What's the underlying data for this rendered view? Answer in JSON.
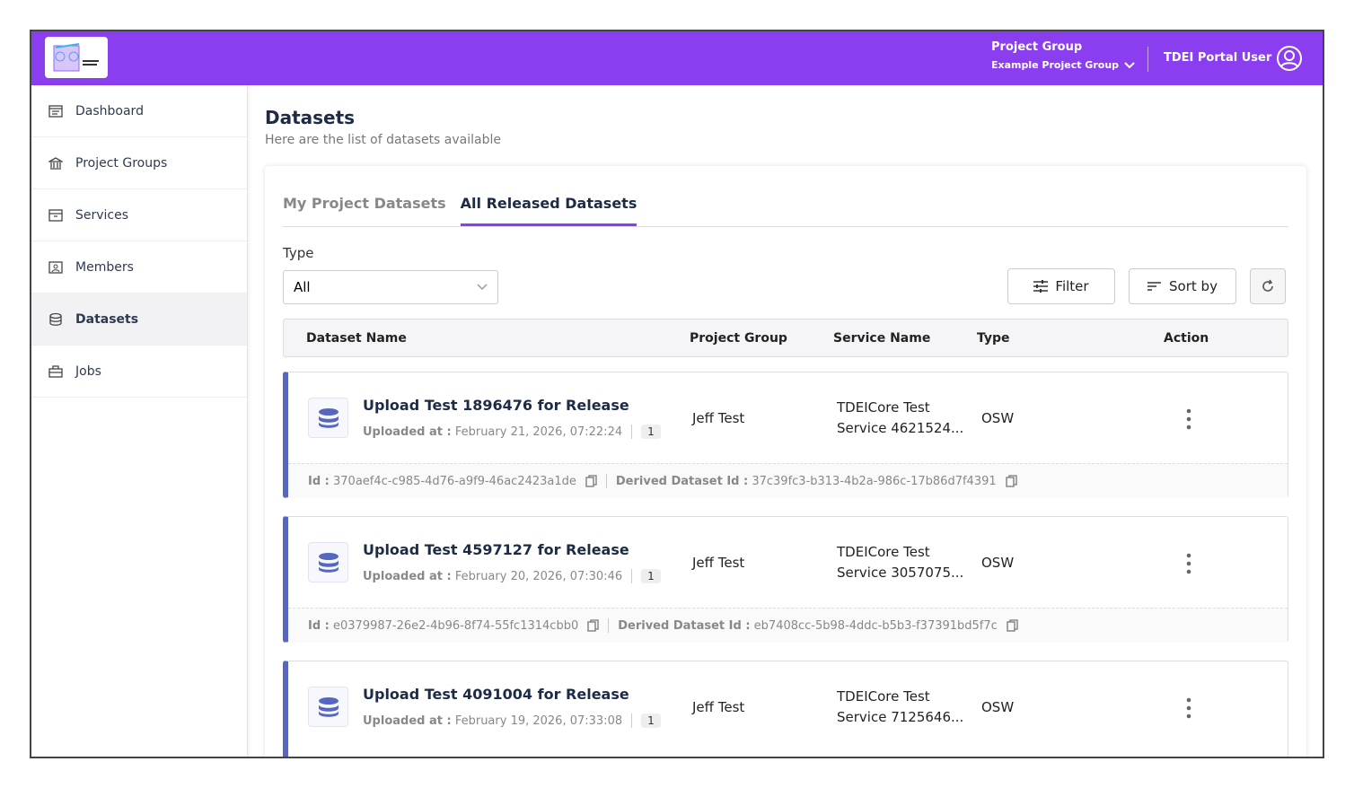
{
  "header": {
    "project_group_label": "Project Group",
    "project_group_value": "Example Project Group",
    "user": "TDEI Portal User",
    "brand_color": "#8a3ef0"
  },
  "sidebar": {
    "items": [
      {
        "label": "Dashboard",
        "icon": "dashboard-icon"
      },
      {
        "label": "Project Groups",
        "icon": "bank-icon"
      },
      {
        "label": "Services",
        "icon": "archive-icon"
      },
      {
        "label": "Members",
        "icon": "member-icon"
      },
      {
        "label": "Datasets",
        "icon": "database-icon",
        "active": true
      },
      {
        "label": "Jobs",
        "icon": "briefcase-icon"
      }
    ]
  },
  "page": {
    "title": "Datasets",
    "subtitle": "Here are the list of datasets available"
  },
  "tabs": [
    {
      "label": "My Project Datasets"
    },
    {
      "label": "All Released Datasets",
      "active": true
    }
  ],
  "filters": {
    "type_label": "Type",
    "type_value": "All",
    "filter_label": "Filter",
    "sort_label": "Sort by"
  },
  "table": {
    "columns": [
      "Dataset Name",
      "Project Group",
      "Service Name",
      "Type",
      "Action"
    ],
    "rows": [
      {
        "name": "Upload Test 1896476 for Release",
        "uploaded_label": "Uploaded at :",
        "uploaded": "February 21, 2026, 07:22:24",
        "version": "1",
        "project_group": "Jeff Test",
        "service_line1": "TDEICore Test",
        "service_line2": "Service 4621524...",
        "type": "OSW",
        "id_label": "Id :",
        "id": "370aef4c-c985-4d76-a9f9-46ac2423a1de",
        "derived_label": "Derived Dataset Id :",
        "derived_id": "37c39fc3-b313-4b2a-986c-17b86d7f4391"
      },
      {
        "name": "Upload Test 4597127 for Release",
        "uploaded_label": "Uploaded at :",
        "uploaded": "February 20, 2026, 07:30:46",
        "version": "1",
        "project_group": "Jeff Test",
        "service_line1": "TDEICore Test",
        "service_line2": "Service 3057075...",
        "type": "OSW",
        "id_label": "Id :",
        "id": "e0379987-26e2-4b96-8f74-55fc1314cbb0",
        "derived_label": "Derived Dataset Id :",
        "derived_id": "eb7408cc-5b98-4ddc-b5b3-f37391bd5f7c"
      },
      {
        "name": "Upload Test 4091004 for Release",
        "uploaded_label": "Uploaded at :",
        "uploaded": "February 19, 2026, 07:33:08",
        "version": "1",
        "project_group": "Jeff Test",
        "service_line1": "TDEICore Test",
        "service_line2": "Service 7125646...",
        "type": "OSW"
      }
    ]
  }
}
